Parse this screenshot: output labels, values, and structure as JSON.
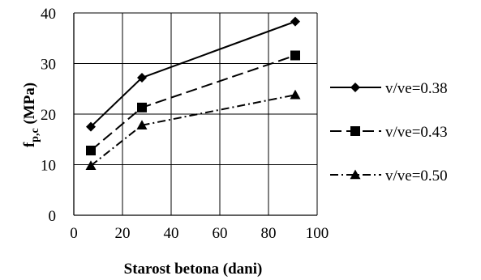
{
  "chart_data": {
    "type": "line",
    "xlabel": "Starost betona (dani)",
    "ylabel_main": "f",
    "ylabel_sub": "p,c",
    "ylabel_unit": " (MPa)",
    "xlim": [
      0,
      100
    ],
    "ylim": [
      0,
      40
    ],
    "x_ticks": [
      "0",
      "20",
      "40",
      "60",
      "80",
      "100"
    ],
    "y_ticks": [
      "0",
      "10",
      "20",
      "30",
      "40"
    ],
    "grid": true,
    "legend_position": "right",
    "x": [
      7,
      28,
      91
    ],
    "series": [
      {
        "name": "v/ve=0.38",
        "values": [
          17.5,
          27.2,
          38.3
        ],
        "marker": "diamond",
        "dash": "solid"
      },
      {
        "name": "v/ve=0.43",
        "values": [
          12.8,
          21.3,
          31.6
        ],
        "marker": "square",
        "dash": "dash"
      },
      {
        "name": "v/ve=0.50",
        "values": [
          9.8,
          17.8,
          23.8
        ],
        "marker": "triangle",
        "dash": "dashdot"
      }
    ]
  }
}
